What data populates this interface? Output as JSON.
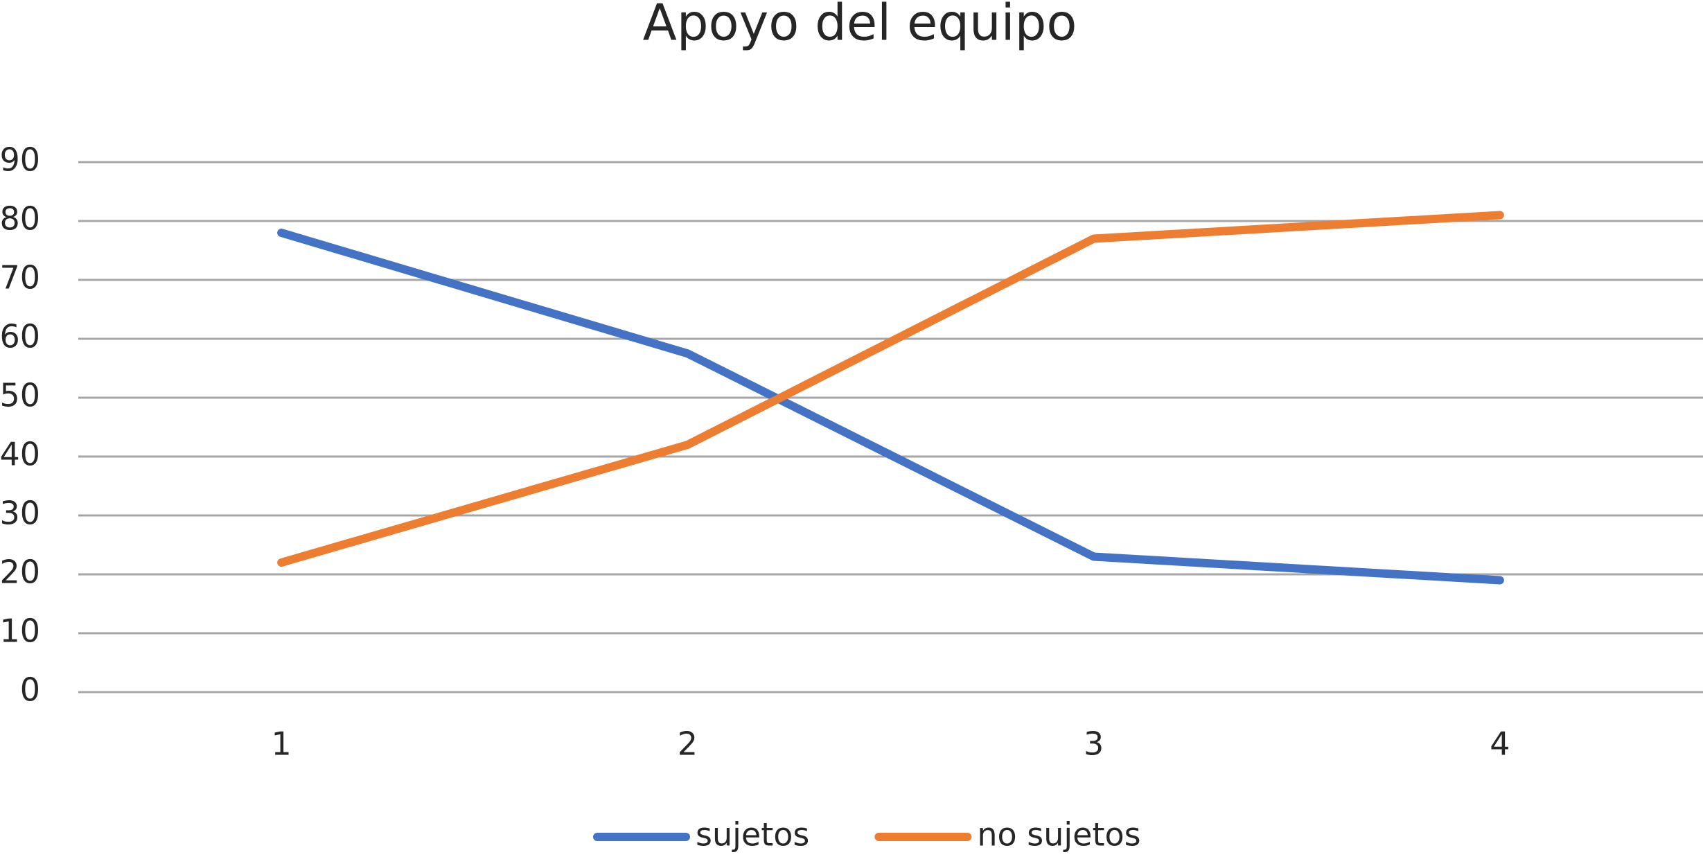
{
  "chart_data": {
    "type": "line",
    "title": "Apoyo del equipo",
    "categories": [
      "1",
      "2",
      "3",
      "4"
    ],
    "series": [
      {
        "name": "sujetos",
        "color": "#4472c4",
        "values": [
          78,
          57.5,
          23,
          19
        ]
      },
      {
        "name": "no sujetos",
        "color": "#ed7d31",
        "values": [
          22,
          42,
          77,
          81
        ]
      }
    ],
    "ylim": [
      0,
      90
    ],
    "yticks": [
      0,
      10,
      20,
      30,
      40,
      50,
      60,
      70,
      80,
      90
    ],
    "grid": true,
    "legend": "bottom"
  }
}
